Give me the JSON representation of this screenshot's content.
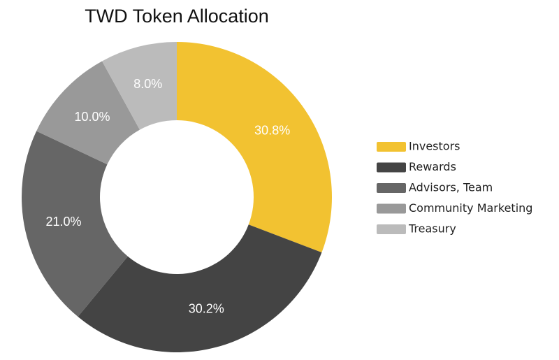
{
  "chart_data": {
    "type": "donut",
    "title": "TWD Token Allocation",
    "categories": [
      "Investors",
      "Rewards",
      "Advisors, Team",
      "Community Marketing",
      "Treasury"
    ],
    "values": [
      30.8,
      30.2,
      21.0,
      10.0,
      8.0
    ],
    "value_labels": [
      "30.8%",
      "30.2%",
      "21.0%",
      "10.0%",
      "8.0%"
    ],
    "colors": [
      "#f2c231",
      "#444444",
      "#666666",
      "#999999",
      "#bbbbbb"
    ],
    "legend": "right"
  }
}
